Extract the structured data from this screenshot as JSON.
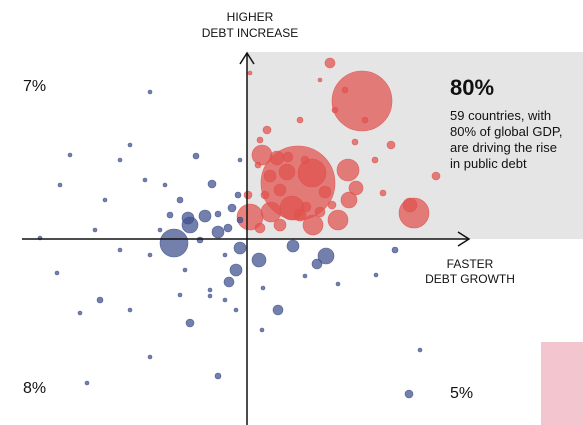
{
  "chart_data": {
    "type": "scatter",
    "y_label": [
      "HIGHER",
      "DEBT INCREASE"
    ],
    "x_label": [
      "FASTER",
      "DEBT GROWTH"
    ],
    "quadrant_labels": [
      "7%",
      "8%",
      "5%"
    ],
    "highlight": {
      "title": "80%",
      "text": [
        "59 countries, with",
        "80% of global GDP,",
        "are driving the rise",
        "in public debt"
      ]
    },
    "xlim": [
      -247,
      336
    ],
    "ylim": [
      -186,
      239
    ],
    "series": [
      {
        "color": "#e0524e",
        "x": [
          83,
          115,
          3,
          15,
          51,
          65,
          101,
          109,
          102,
          45,
          40,
          33,
          23,
          30,
          41,
          3,
          24,
          66,
          91,
          59,
          73,
          167,
          163,
          144,
          189,
          136,
          118,
          108,
          73,
          53,
          20,
          11,
          1,
          18,
          78,
          53,
          85,
          13,
          33,
          88,
          98,
          128,
          13,
          58
        ],
        "y": [
          176,
          138,
          166,
          84,
          56,
          66,
          69,
          51,
          39,
          31,
          67,
          49,
          63,
          81,
          82,
          22,
          27,
          14,
          19,
          32,
          27,
          26,
          34,
          94,
          63,
          46,
          119,
          97,
          159,
          119,
          109,
          74,
          44,
          44,
          47,
          24,
          34,
          11,
          14,
          129,
          149,
          79,
          99,
          79
        ],
        "sizes": [
          5,
          30,
          2,
          10,
          37,
          14,
          11,
          7,
          8,
          12,
          8,
          6,
          6,
          7,
          5,
          13,
          10,
          10,
          10,
          5,
          5,
          15,
          7,
          4,
          4,
          3,
          3,
          3,
          2,
          3,
          4,
          3,
          4,
          4,
          6,
          6,
          4,
          5,
          6,
          3,
          3,
          3,
          3,
          4
        ]
      },
      {
        "color": "#3f4f8c",
        "x": [
          -73,
          -57,
          -59,
          -42,
          -29,
          -35,
          -51,
          -7,
          -11,
          -18,
          12,
          46,
          79,
          70,
          31,
          -15,
          -19,
          -9,
          -29,
          -67,
          -82,
          -97,
          -117,
          -127,
          -177,
          -187,
          -207,
          -190,
          -147,
          -117,
          -97,
          -57,
          -67,
          -37,
          -29,
          -97,
          -160,
          -167,
          173,
          162,
          148,
          129,
          91,
          58,
          16,
          15,
          -11,
          -127,
          -77,
          -47,
          -37,
          -22,
          -87,
          -102,
          -142,
          -152,
          -62,
          -7,
          -22,
          -7
        ],
        "y": [
          -4,
          14,
          21,
          23,
          7,
          55,
          83,
          -9,
          -31,
          -43,
          -21,
          -7,
          -17,
          -25,
          -71,
          31,
          11,
          44,
          25,
          39,
          54,
          147,
          94,
          79,
          84,
          54,
          1,
          -34,
          -61,
          -71,
          -16,
          -84,
          -56,
          -57,
          -137,
          -118,
          -144,
          -74,
          -111,
          -155,
          -11,
          -36,
          -45,
          -37,
          -49,
          -91,
          -71,
          -11,
          24,
          -1,
          -51,
          -61,
          9,
          59,
          39,
          9,
          -31,
          79,
          -16,
          19
        ],
        "sizes": [
          14,
          8,
          6,
          6,
          6,
          4,
          3,
          6,
          6,
          5,
          7,
          6,
          8,
          5,
          5,
          4,
          4,
          3,
          3,
          3,
          2,
          2,
          2,
          2,
          2,
          2,
          2,
          2,
          3,
          2,
          2,
          4,
          2,
          2,
          3,
          2,
          2,
          2,
          2,
          4,
          3,
          2,
          2,
          2,
          2,
          2,
          2,
          2,
          3,
          3,
          2,
          2,
          2,
          2,
          2,
          2,
          2,
          2,
          2,
          3
        ]
      }
    ]
  }
}
